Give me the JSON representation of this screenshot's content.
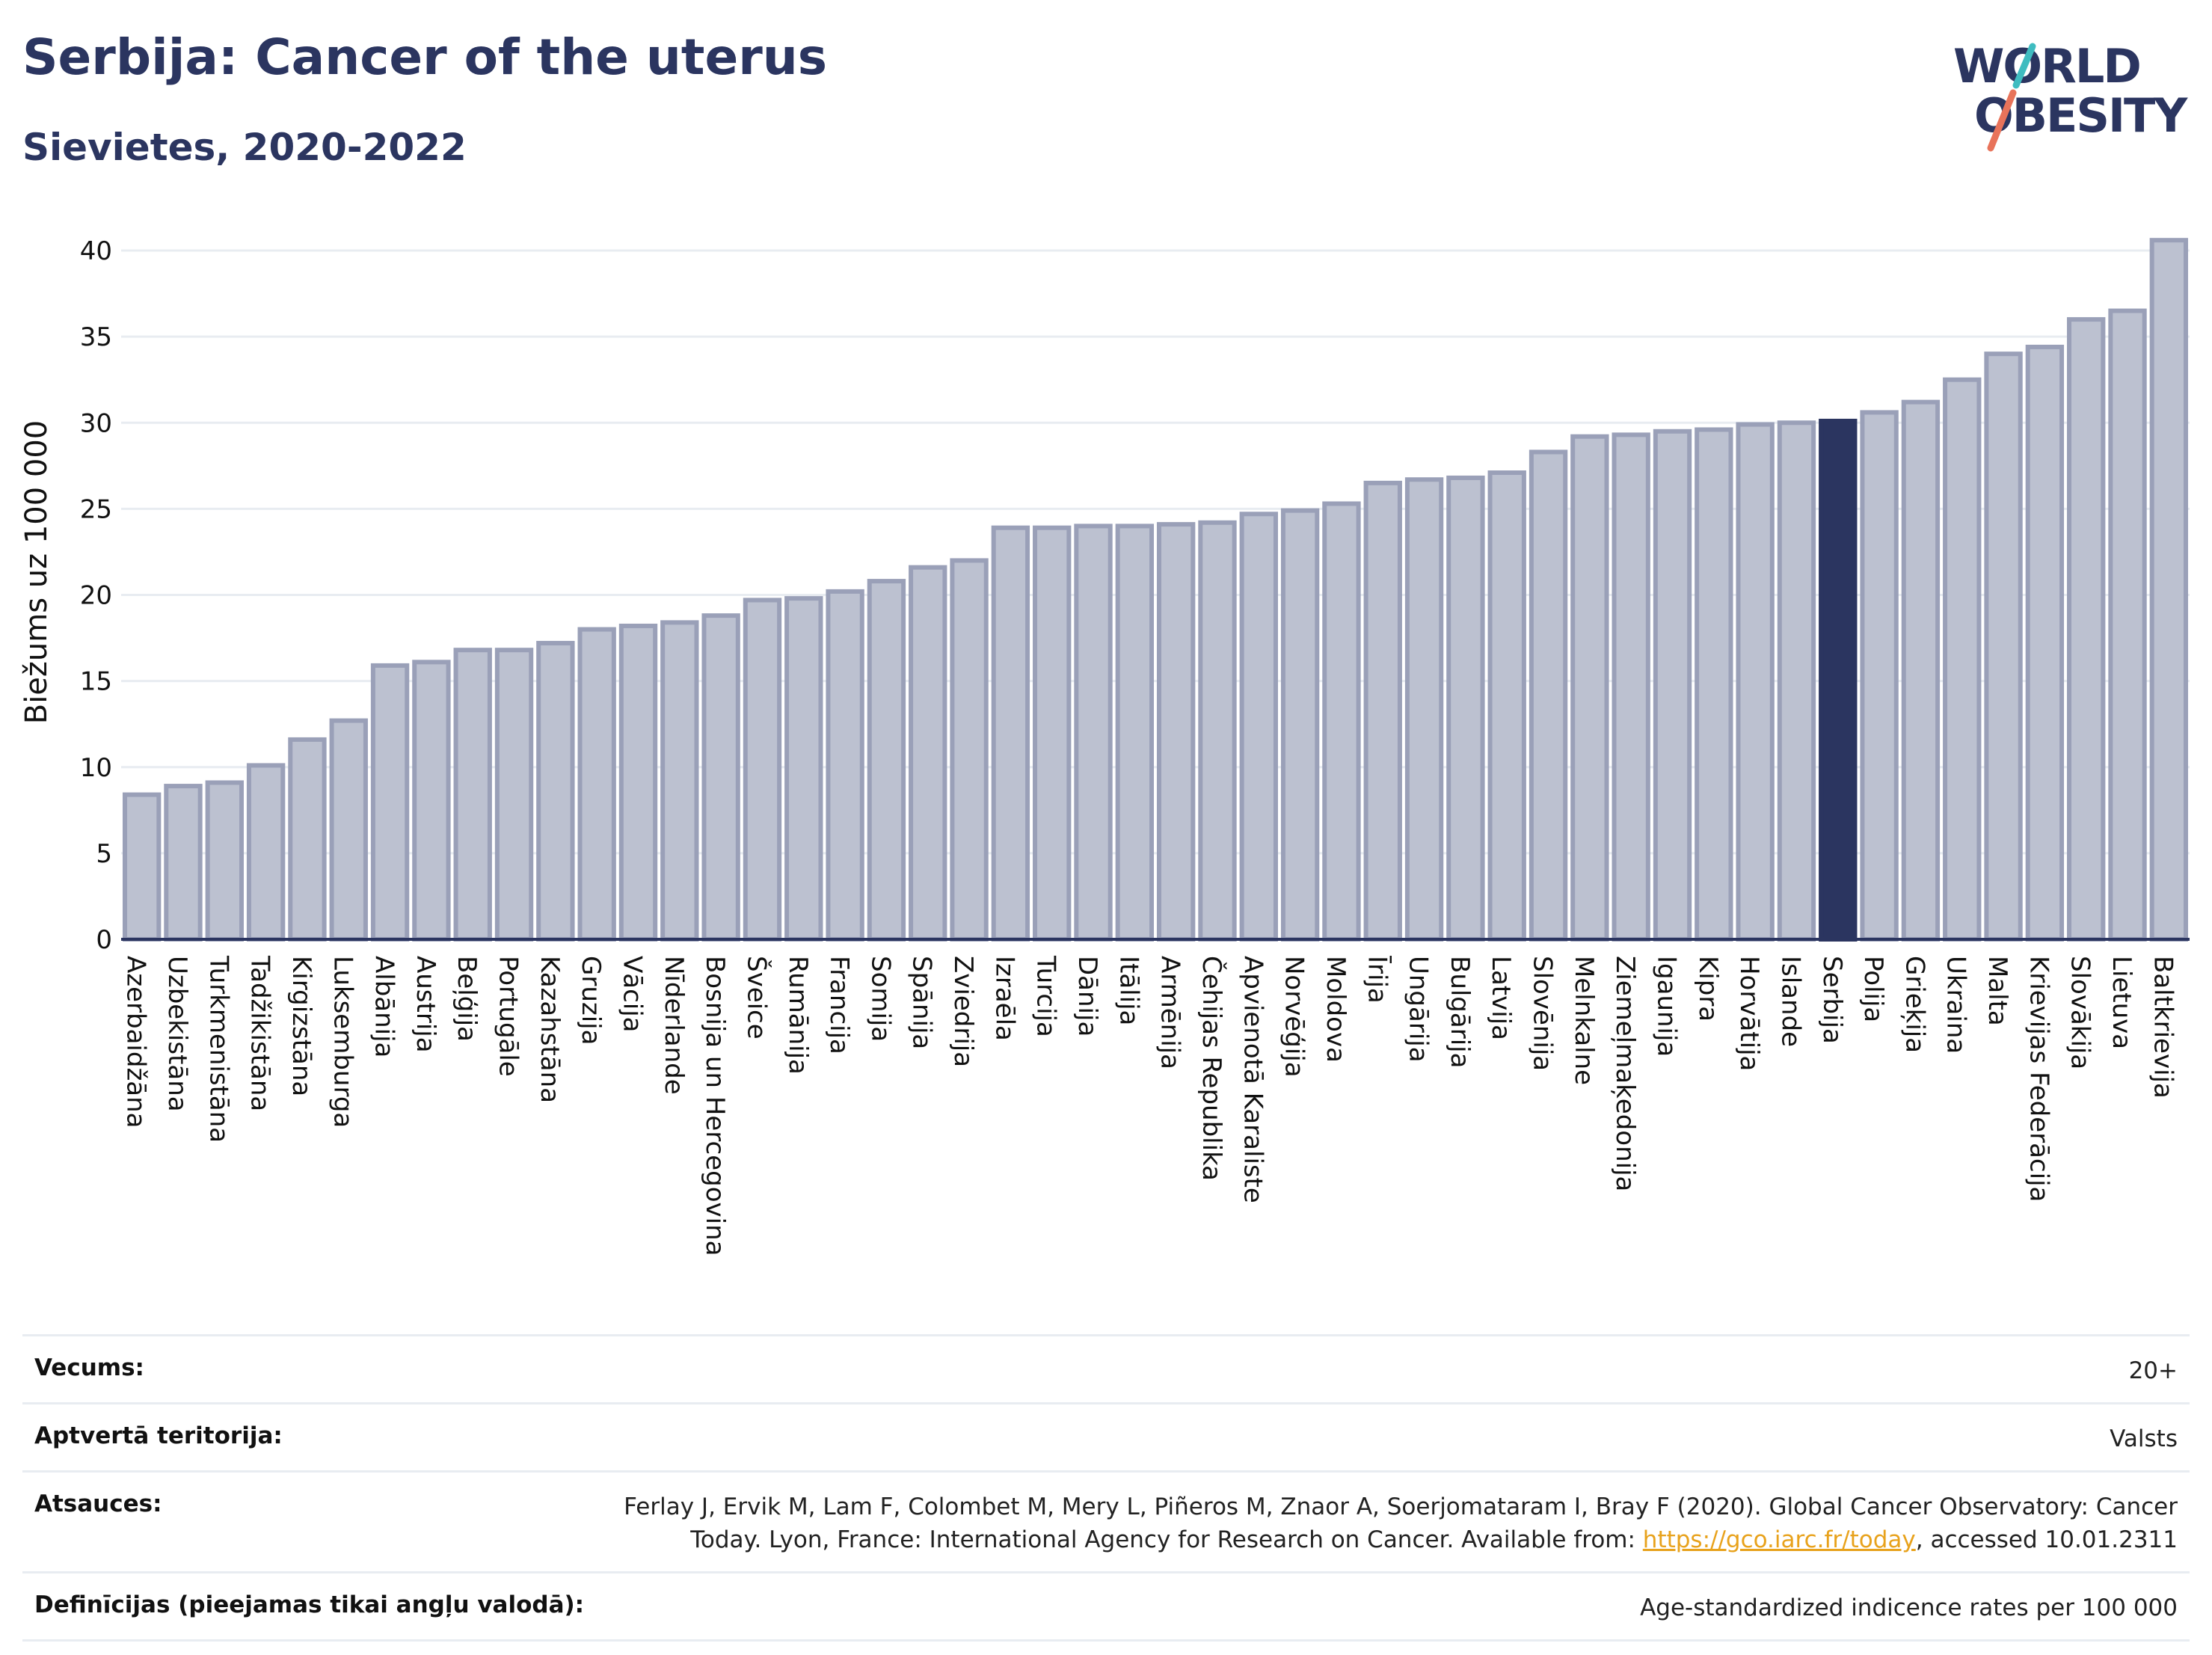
{
  "title": "Serbija: Cancer of the uterus",
  "subtitle": "Sievietes, 2020-2022",
  "logo": {
    "line1": "WORLD",
    "line2": "OBESITY"
  },
  "colors": {
    "bar": "#bcc1d0",
    "bar_border": "#9aa0b8",
    "highlight": "#2b3560",
    "grid": "#e8ecf1",
    "axis": "#2b3560",
    "link": "#e8a21c"
  },
  "chart_data": {
    "type": "bar",
    "ylabel": "Biežums uz 100 000",
    "xlabel": "",
    "ylim": [
      0,
      42
    ],
    "yticks": [
      0,
      5,
      10,
      15,
      20,
      25,
      30,
      35,
      40
    ],
    "highlight": "Serbija",
    "categories": [
      "Azerbaidžāna",
      "Uzbekistāna",
      "Turkmenistāna",
      "Tadžikistāna",
      "Kirgizstāna",
      "Luksemburga",
      "Albānija",
      "Austrija",
      "Beļģija",
      "Portugāle",
      "Kazahstāna",
      "Gruzija",
      "Vācija",
      "Nīderlande",
      "Bosnija un Hercegovina",
      "Šveice",
      "Rumānija",
      "Francija",
      "Somija",
      "Spānija",
      "Zviedrija",
      "Izraēla",
      "Turcija",
      "Dānija",
      "Itālija",
      "Armēnija",
      "Čehijas Republika",
      "Apvienotā Karaliste",
      "Norvēģija",
      "Moldova",
      "Īrija",
      "Ungārija",
      "Bulgārija",
      "Latvija",
      "Slovēnija",
      "Melnkalne",
      "Ziemeļmaķedonija",
      "Igaunija",
      "Kipra",
      "Horvātija",
      "Islande",
      "Serbija",
      "Polija",
      "Grieķija",
      "Ukraina",
      "Malta",
      "Krievijas Federācija",
      "Slovākija",
      "Lietuva",
      "Baltkrievija"
    ],
    "values": [
      8.4,
      8.9,
      9.1,
      10.1,
      11.6,
      12.7,
      15.9,
      16.1,
      16.8,
      16.8,
      17.2,
      18.0,
      18.2,
      18.4,
      18.8,
      19.7,
      19.8,
      20.2,
      20.8,
      21.6,
      22.0,
      23.9,
      23.9,
      24.0,
      24.0,
      24.1,
      24.2,
      24.7,
      24.9,
      25.3,
      26.5,
      26.7,
      26.8,
      27.1,
      28.3,
      29.2,
      29.3,
      29.5,
      29.6,
      29.9,
      30.0,
      30.1,
      30.6,
      31.2,
      32.5,
      34.0,
      34.4,
      36.0,
      36.5,
      40.6
    ]
  },
  "meta": [
    {
      "label": "Vecums:",
      "value": "20+"
    },
    {
      "label": "Aptvertā teritorija:",
      "value": "Valsts"
    },
    {
      "label": "Atsauces:",
      "value_pre": "Ferlay J, Ervik M, Lam F, Colombet M, Mery L, Piñeros M, Znaor A, Soerjomataram I, Bray F (2020). Global Cancer Observatory: Cancer Today. Lyon, France: International Agency for Research on Cancer. Available from: ",
      "link": "https://gco.iarc.fr/today",
      "value_post": ", accessed 10.01.2311"
    },
    {
      "label": "Definīcijas (pieejamas tikai angļu valodā):",
      "value": "Age-standardized indicence rates per 100 000"
    }
  ]
}
